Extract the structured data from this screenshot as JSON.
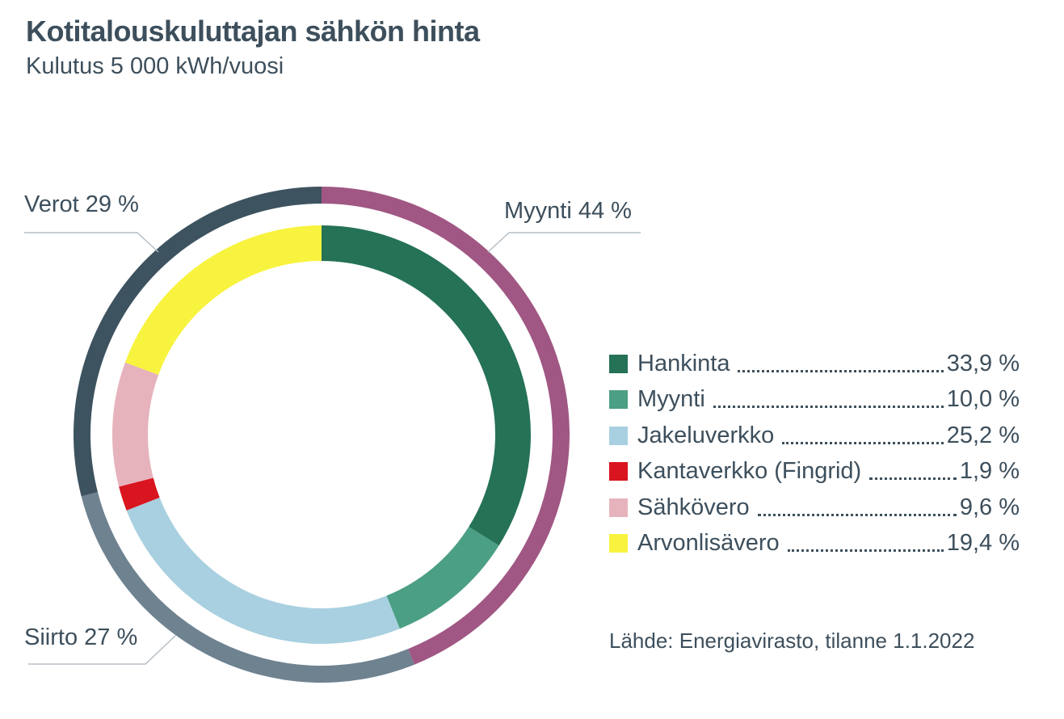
{
  "chart_data": {
    "type": "pie",
    "title": "Kotitalouskuluttajan sähkön hinta",
    "subtitle": "Kulutus 5 000 kWh/vuosi",
    "inner_ring": [
      {
        "name": "Hankinta",
        "value": 33.9,
        "value_label": "33,9 %",
        "color": "#257256"
      },
      {
        "name": "Myynti",
        "value": 10.0,
        "value_label": "10,0 %",
        "color": "#4b9f84"
      },
      {
        "name": "Jakeluverkko",
        "value": 25.2,
        "value_label": "25,2 %",
        "color": "#a8d0e0"
      },
      {
        "name": "Kantaverkko (Fingrid)",
        "value": 1.9,
        "value_label": "1,9 %",
        "color": "#d9151f"
      },
      {
        "name": "Sähkövero",
        "value": 9.6,
        "value_label": "9,6 %",
        "color": "#e6b3bc"
      },
      {
        "name": "Arvonlisävero",
        "value": 19.4,
        "value_label": "19,4 %",
        "color": "#f8f33e"
      }
    ],
    "outer_ring": [
      {
        "label": "Myynti 44 %",
        "value": 43.9,
        "color": "#a05784"
      },
      {
        "label": "Siirto 27 %",
        "value": 27.1,
        "color": "#6e8290"
      },
      {
        "label": "Verot 29 %",
        "value": 29.0,
        "color": "#3d5360"
      }
    ],
    "legend_position": "right",
    "source": "Lähde: Energiavirasto, tilanne 1.1.2022"
  },
  "text_color": "#3d4f5c"
}
